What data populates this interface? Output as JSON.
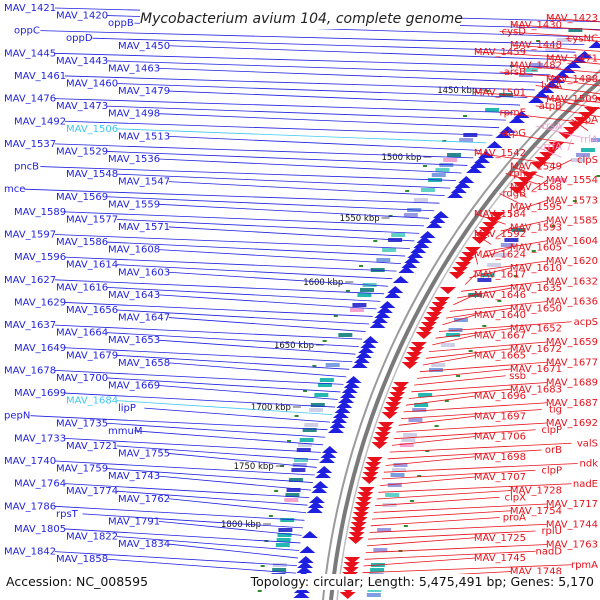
{
  "title": "Mycobacterium avium 104, complete genome",
  "accession_text": "Accession: NC_008595",
  "topology_text": "Topology: circular; Length: 5,475,491 bp; Genes: 5,170",
  "colors": {
    "plus_strand": "#e8111b",
    "minus_strand": "#1f1fe0",
    "rna_plus": "#f29ad2",
    "rna_minus": "#3ec8f0",
    "backbone": "#7a7a7a",
    "ticks": "#2e8b2e"
  },
  "scale_labels": [
    "1450 kbp",
    "1500 kbp",
    "1550 kbp",
    "1600 kbp",
    "1650 kbp",
    "1700 kbp",
    "1750 kbp",
    "1800 kbp"
  ],
  "genes_left": [
    {
      "label": "MAV_1421",
      "color": "#1f1fe0"
    },
    {
      "label": "MAV_1420",
      "color": "#1f1fe0"
    },
    {
      "label": "oppB",
      "color": "#1f1fe0"
    },
    {
      "label": "oppC",
      "color": "#1f1fe0"
    },
    {
      "label": "oppD",
      "color": "#1f1fe0"
    },
    {
      "label": "MAV_1450",
      "color": "#1f1fe0"
    },
    {
      "label": "MAV_1445",
      "color": "#1f1fe0"
    },
    {
      "label": "MAV_1443",
      "color": "#1f1fe0"
    },
    {
      "label": "MAV_1463",
      "color": "#1f1fe0"
    },
    {
      "label": "MAV_1461",
      "color": "#1f1fe0"
    },
    {
      "label": "MAV_1460",
      "color": "#1f1fe0"
    },
    {
      "label": "MAV_1479",
      "color": "#1f1fe0"
    },
    {
      "label": "MAV_1476",
      "color": "#1f1fe0"
    },
    {
      "label": "MAV_1473",
      "color": "#1f1fe0"
    },
    {
      "label": "MAV_1498",
      "color": "#1f1fe0"
    },
    {
      "label": "MAV_1492",
      "color": "#1f1fe0"
    },
    {
      "label": "MAV_1506",
      "color": "#3ec8f0"
    },
    {
      "label": "MAV_1513",
      "color": "#1f1fe0"
    },
    {
      "label": "MAV_1537",
      "color": "#1f1fe0"
    },
    {
      "label": "MAV_1529",
      "color": "#1f1fe0"
    },
    {
      "label": "MAV_1536",
      "color": "#1f1fe0"
    },
    {
      "label": "pncB",
      "color": "#1f1fe0"
    },
    {
      "label": "MAV_1548",
      "color": "#1f1fe0"
    },
    {
      "label": "MAV_1547",
      "color": "#1f1fe0"
    },
    {
      "label": "mce",
      "color": "#1f1fe0"
    },
    {
      "label": "MAV_1569",
      "color": "#1f1fe0"
    },
    {
      "label": "MAV_1559",
      "color": "#1f1fe0"
    },
    {
      "label": "MAV_1589",
      "color": "#1f1fe0"
    },
    {
      "label": "MAV_1577",
      "color": "#1f1fe0"
    },
    {
      "label": "MAV_1571",
      "color": "#1f1fe0"
    },
    {
      "label": "MAV_1597",
      "color": "#1f1fe0"
    },
    {
      "label": "MAV_1586",
      "color": "#1f1fe0"
    },
    {
      "label": "MAV_1608",
      "color": "#1f1fe0"
    },
    {
      "label": "MAV_1596",
      "color": "#1f1fe0"
    },
    {
      "label": "MAV_1614",
      "color": "#1f1fe0"
    },
    {
      "label": "MAV_1603",
      "color": "#1f1fe0"
    },
    {
      "label": "MAV_1627",
      "color": "#1f1fe0"
    },
    {
      "label": "MAV_1616",
      "color": "#1f1fe0"
    },
    {
      "label": "MAV_1643",
      "color": "#1f1fe0"
    },
    {
      "label": "MAV_1629",
      "color": "#1f1fe0"
    },
    {
      "label": "MAV_1656",
      "color": "#1f1fe0"
    },
    {
      "label": "MAV_1647",
      "color": "#1f1fe0"
    },
    {
      "label": "MAV_1637",
      "color": "#1f1fe0"
    },
    {
      "label": "MAV_1664",
      "color": "#1f1fe0"
    },
    {
      "label": "MAV_1653",
      "color": "#1f1fe0"
    },
    {
      "label": "MAV_1649",
      "color": "#1f1fe0"
    },
    {
      "label": "MAV_1679",
      "color": "#1f1fe0"
    },
    {
      "label": "MAV_1658",
      "color": "#1f1fe0"
    },
    {
      "label": "MAV_1678",
      "color": "#1f1fe0"
    },
    {
      "label": "MAV_1700",
      "color": "#1f1fe0"
    },
    {
      "label": "MAV_1669",
      "color": "#1f1fe0"
    },
    {
      "label": "MAV_1699",
      "color": "#1f1fe0"
    },
    {
      "label": "MAV_1684",
      "color": "#3ec8f0"
    },
    {
      "label": "lipP",
      "color": "#1f1fe0"
    },
    {
      "label": "pepN",
      "color": "#1f1fe0"
    },
    {
      "label": "MAV_1735",
      "color": "#1f1fe0"
    },
    {
      "label": "mmuM",
      "color": "#1f1fe0"
    },
    {
      "label": "MAV_1733",
      "color": "#1f1fe0"
    },
    {
      "label": "MAV_1721",
      "color": "#1f1fe0"
    },
    {
      "label": "MAV_1755",
      "color": "#1f1fe0"
    },
    {
      "label": "MAV_1740",
      "color": "#1f1fe0"
    },
    {
      "label": "MAV_1759",
      "color": "#1f1fe0"
    },
    {
      "label": "MAV_1743",
      "color": "#1f1fe0"
    },
    {
      "label": "MAV_1764",
      "color": "#1f1fe0"
    },
    {
      "label": "MAV_1774",
      "color": "#1f1fe0"
    },
    {
      "label": "MAV_1762",
      "color": "#1f1fe0"
    },
    {
      "label": "MAV_1786",
      "color": "#1f1fe0"
    },
    {
      "label": "rpsT",
      "color": "#1f1fe0"
    },
    {
      "label": "MAV_1791",
      "color": "#1f1fe0"
    },
    {
      "label": "MAV_1805",
      "color": "#1f1fe0"
    },
    {
      "label": "MAV_1822",
      "color": "#1f1fe0"
    },
    {
      "label": "MAV_1834",
      "color": "#1f1fe0"
    },
    {
      "label": "MAV_1842",
      "color": "#1f1fe0"
    },
    {
      "label": "MAV_1858",
      "color": "#1f1fe0"
    }
  ],
  "genes_right": [
    {
      "label": "MAV_1423",
      "color": "#e8111b"
    },
    {
      "label": "MAV_1430",
      "color": "#e8111b"
    },
    {
      "label": "cysD",
      "color": "#e8111b"
    },
    {
      "label": "cysNC",
      "color": "#e8111b"
    },
    {
      "label": "MAV_1448",
      "color": "#e8111b"
    },
    {
      "label": "MAV_1459",
      "color": "#e8111b"
    },
    {
      "label": "MAV_1471",
      "color": "#e8111b"
    },
    {
      "label": "MAV_1482",
      "color": "#e8111b"
    },
    {
      "label": "arsB",
      "color": "#e8111b"
    },
    {
      "label": "MAV_1488",
      "color": "#e8111b"
    },
    {
      "label": "lysA",
      "color": "#e8111b"
    },
    {
      "label": "MAV_1501",
      "color": "#e8111b"
    },
    {
      "label": "MAV_1509",
      "color": "#e8111b"
    },
    {
      "label": "atpB",
      "color": "#e8111b"
    },
    {
      "label": "rpmE",
      "color": "#e8111b"
    },
    {
      "label": "atpA",
      "color": "#e8111b"
    },
    {
      "label": "rrsA",
      "color": "#f29ad2"
    },
    {
      "label": "atpG",
      "color": "#e8111b"
    },
    {
      "label": "rrlA",
      "color": "#f29ad2"
    },
    {
      "label": "rrfA",
      "color": "#f29ad2"
    },
    {
      "label": "MAV_1542",
      "color": "#e8111b"
    },
    {
      "label": "clpS",
      "color": "#e8111b"
    },
    {
      "label": "MAV_1549",
      "color": "#e8111b"
    },
    {
      "label": "rph",
      "color": "#e8111b"
    },
    {
      "label": "MAV_1554",
      "color": "#e8111b"
    },
    {
      "label": "MAV_1568",
      "color": "#e8111b"
    },
    {
      "label": "rdgB",
      "color": "#e8111b"
    },
    {
      "label": "MAV_1573",
      "color": "#e8111b"
    },
    {
      "label": "MAV_1595",
      "color": "#e8111b"
    },
    {
      "label": "MAV_1584",
      "color": "#e8111b"
    },
    {
      "label": "MAV_1585",
      "color": "#e8111b"
    },
    {
      "label": "MAV_1593",
      "color": "#e8111b"
    },
    {
      "label": "MAV_1592",
      "color": "#e8111b"
    },
    {
      "label": "MAV_1604",
      "color": "#e8111b"
    },
    {
      "label": "MAV_1605",
      "color": "#e8111b"
    },
    {
      "label": "MAV_1624",
      "color": "#e8111b"
    },
    {
      "label": "MAV_1620",
      "color": "#e8111b"
    },
    {
      "label": "MAV_1610",
      "color": "#e8111b"
    },
    {
      "label": "MAV_1617",
      "color": "#e8111b"
    },
    {
      "label": "MAV_1632",
      "color": "#e8111b"
    },
    {
      "label": "MAV_1635",
      "color": "#e8111b"
    },
    {
      "label": "MAV_1646",
      "color": "#e8111b"
    },
    {
      "label": "MAV_1636",
      "color": "#e8111b"
    },
    {
      "label": "MAV_1650",
      "color": "#e8111b"
    },
    {
      "label": "MAV_1640",
      "color": "#e8111b"
    },
    {
      "label": "acpS",
      "color": "#e8111b"
    },
    {
      "label": "MAV_1652",
      "color": "#e8111b"
    },
    {
      "label": "MAV_1667",
      "color": "#e8111b"
    },
    {
      "label": "MAV_1659",
      "color": "#e8111b"
    },
    {
      "label": "MAV_1672",
      "color": "#e8111b"
    },
    {
      "label": "MAV_1665",
      "color": "#e8111b"
    },
    {
      "label": "MAV_1677",
      "color": "#e8111b"
    },
    {
      "label": "MAV_1671",
      "color": "#e8111b"
    },
    {
      "label": "ssb",
      "color": "#e8111b"
    },
    {
      "label": "MAV_1689",
      "color": "#e8111b"
    },
    {
      "label": "MAV_1683",
      "color": "#e8111b"
    },
    {
      "label": "MAV_1696",
      "color": "#e8111b"
    },
    {
      "label": "MAV_1687",
      "color": "#e8111b"
    },
    {
      "label": "tig",
      "color": "#e8111b"
    },
    {
      "label": "MAV_1697",
      "color": "#e8111b"
    },
    {
      "label": "MAV_1692",
      "color": "#e8111b"
    },
    {
      "label": "clpP",
      "color": "#e8111b"
    },
    {
      "label": "MAV_1706",
      "color": "#e8111b"
    },
    {
      "label": "valS",
      "color": "#e8111b"
    },
    {
      "label": "orB",
      "color": "#e8111b"
    },
    {
      "label": "MAV_1698",
      "color": "#e8111b"
    },
    {
      "label": "ndk",
      "color": "#e8111b"
    },
    {
      "label": "clpP",
      "color": "#e8111b"
    },
    {
      "label": "MAV_1707",
      "color": "#e8111b"
    },
    {
      "label": "nadE",
      "color": "#e8111b"
    },
    {
      "label": "MAV_1728",
      "color": "#e8111b"
    },
    {
      "label": "clpX",
      "color": "#e8111b"
    },
    {
      "label": "MAV_1717",
      "color": "#e8111b"
    },
    {
      "label": "MAV_1754",
      "color": "#e8111b"
    },
    {
      "label": "proA",
      "color": "#e8111b"
    },
    {
      "label": "MAV_1744",
      "color": "#e8111b"
    },
    {
      "label": "rplU",
      "color": "#e8111b"
    },
    {
      "label": "MAV_1725",
      "color": "#e8111b"
    },
    {
      "label": "MAV_1763",
      "color": "#e8111b"
    },
    {
      "label": "nadD",
      "color": "#e8111b"
    },
    {
      "label": "MAV_1745",
      "color": "#e8111b"
    },
    {
      "label": "rpmA",
      "color": "#e8111b"
    },
    {
      "label": "MAV_1748",
      "color": "#e8111b"
    }
  ]
}
